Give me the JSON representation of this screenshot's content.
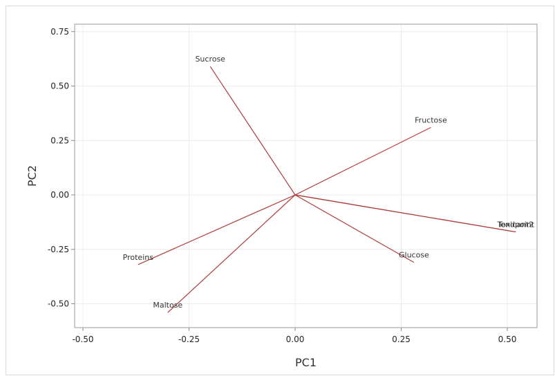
{
  "chart_data": {
    "type": "line",
    "subtype": "biplot-loadings",
    "title": "",
    "xlabel": "PC1",
    "ylabel": "PC2",
    "xlim": [
      -0.52,
      0.58
    ],
    "ylim": [
      -0.61,
      0.77
    ],
    "xticks": [
      -0.5,
      -0.25,
      0.0,
      0.25,
      0.5
    ],
    "yticks": [
      -0.5,
      -0.25,
      0.0,
      0.25,
      0.5,
      0.75
    ],
    "xtick_labels": [
      "-0.50",
      "-0.25",
      "0.00",
      "0.25",
      "0.50"
    ],
    "ytick_labels": [
      "-0.50",
      "-0.25",
      "0.00",
      "0.25",
      "0.50",
      "0.75"
    ],
    "grid": true,
    "line_color": "#b03a3a",
    "vectors": [
      {
        "name": "Sucrose",
        "x": -0.2,
        "y": 0.59
      },
      {
        "name": "Fructose",
        "x": 0.32,
        "y": 0.31
      },
      {
        "name": "Glucose",
        "x": 0.28,
        "y": -0.31
      },
      {
        "name": "Proteins",
        "x": -0.37,
        "y": -0.32
      },
      {
        "name": "Maltose",
        "x": -0.3,
        "y": -0.54
      },
      {
        "name": "Toxicant2",
        "x": 0.52,
        "y": -0.17
      },
      {
        "name": "Tendpoint",
        "x": 0.52,
        "y": -0.17
      }
    ]
  }
}
